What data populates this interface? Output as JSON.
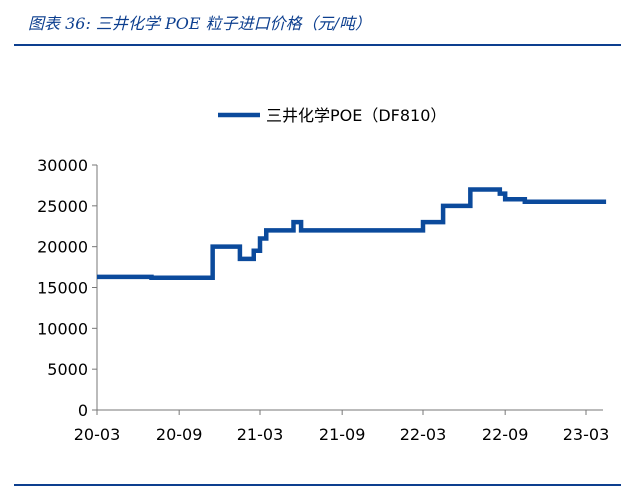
{
  "header": {
    "title": "图表 36:  三井化学 POE 粒子进口价格（元/吨）"
  },
  "colors": {
    "accent": "#0d3f8f",
    "series": "#0b4a9c"
  },
  "chart_data": {
    "type": "line",
    "title": "图表 36:  三井化学 POE 粒子进口价格（元/吨）",
    "xlabel": "",
    "ylabel": "",
    "ylim": [
      0,
      30000
    ],
    "yticks": [
      0,
      5000,
      10000,
      15000,
      20000,
      25000,
      30000
    ],
    "ytick_labels": [
      "0",
      "5000",
      "10000",
      "15000",
      "20000",
      "25000",
      "30000"
    ],
    "xticks": [
      "20-03",
      "20-09",
      "21-03",
      "21-09",
      "22-03",
      "22-09",
      "23-03"
    ],
    "legend": "top-center",
    "grid": false,
    "step": true,
    "series": [
      {
        "name": "三井化学POE（DF810）",
        "x": [
          "2020-03-01",
          "2020-07-01",
          "2020-11-15",
          "2021-01-15",
          "2021-02-15",
          "2021-03-01",
          "2021-03-15",
          "2021-05-15",
          "2021-06-01",
          "2022-03-01",
          "2022-04-15",
          "2022-06-15",
          "2022-08-20",
          "2022-09-01",
          "2022-10-15",
          "2023-04-15"
        ],
        "values": [
          16300,
          16200,
          20000,
          18500,
          19500,
          21000,
          22000,
          23000,
          22000,
          23000,
          25000,
          27000,
          26500,
          25800,
          25500,
          25500
        ]
      }
    ]
  }
}
